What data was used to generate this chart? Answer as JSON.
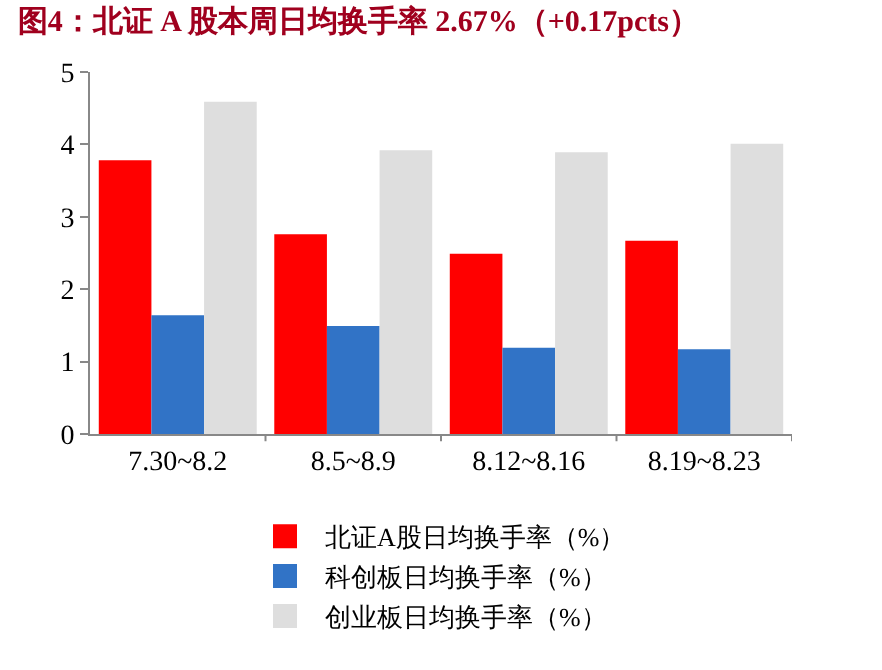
{
  "chart_data": {
    "type": "bar",
    "title": "图4：北证 A 股本周日均换手率 2.67%（+0.17pcts）",
    "categories": [
      "7.30~8.2",
      "8.5~8.9",
      "8.12~8.16",
      "8.19~8.23"
    ],
    "series": [
      {
        "name": "北证A股日均换手率（%）",
        "color": "#ff0000",
        "values": [
          3.78,
          2.76,
          2.49,
          2.67
        ]
      },
      {
        "name": "科创板日均换手率（%）",
        "color": "#3173c6",
        "values": [
          1.64,
          1.49,
          1.19,
          1.17
        ]
      },
      {
        "name": "创业板日均换手率（%）",
        "color": "#dedede",
        "values": [
          4.59,
          3.92,
          3.89,
          4.01
        ]
      }
    ],
    "ylim": [
      0,
      5
    ],
    "yticks": [
      0,
      1,
      2,
      3,
      4,
      5
    ],
    "grid": false,
    "legend": "bottom"
  }
}
